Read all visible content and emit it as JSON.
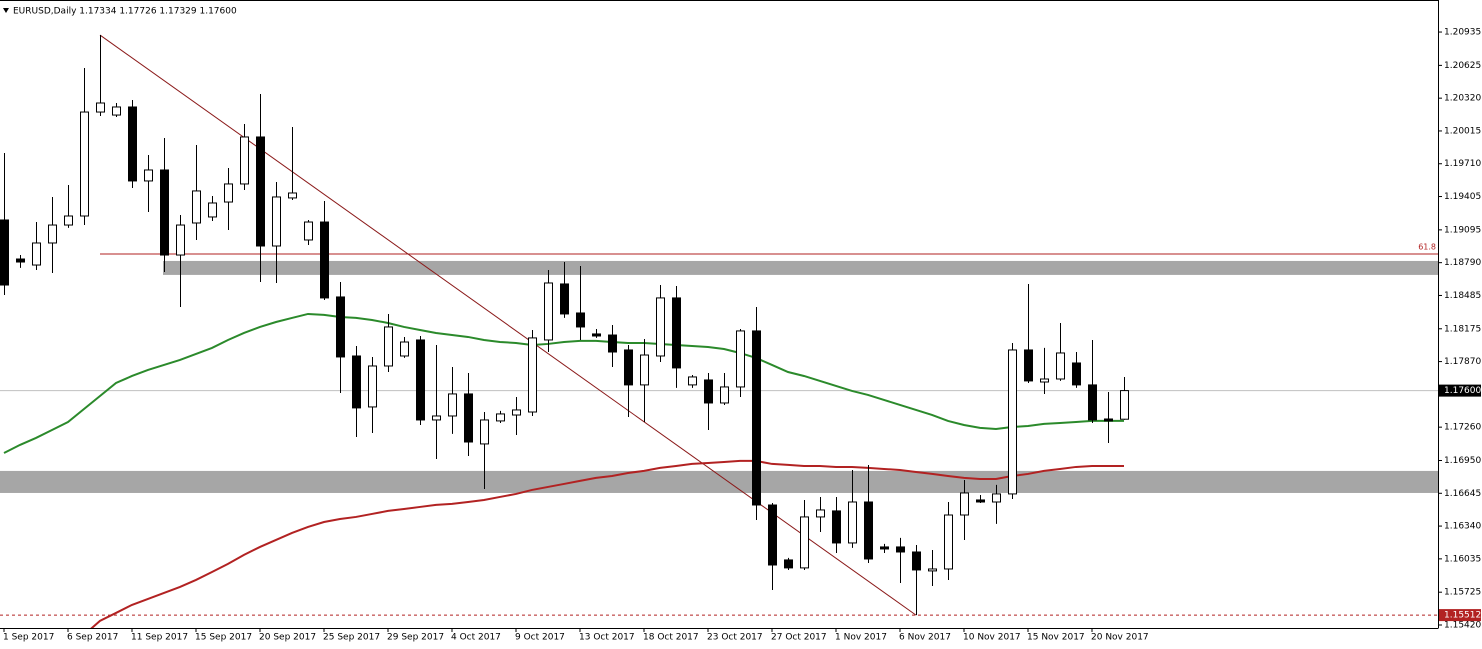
{
  "chart_data": {
    "type": "candlestick",
    "title": "EURUSD,Daily  1.17334 1.17726 1.17329 1.17600",
    "categories": [
      "1 Sep 2017",
      null,
      null,
      null,
      "6 Sep 2017",
      null,
      null,
      null,
      "11 Sep 2017",
      null,
      null,
      null,
      "15 Sep 2017",
      null,
      null,
      null,
      "20 Sep 2017",
      null,
      null,
      null,
      "25 Sep 2017",
      null,
      null,
      null,
      "29 Sep 2017",
      null,
      null,
      null,
      "4 Oct 2017",
      null,
      null,
      null,
      "9 Oct 2017",
      null,
      null,
      null,
      "13 Oct 2017",
      null,
      null,
      null,
      "18 Oct 2017",
      null,
      null,
      null,
      "23 Oct 2017",
      null,
      null,
      null,
      "27 Oct 2017",
      null,
      null,
      null,
      "1 Nov 2017",
      null,
      null,
      null,
      "6 Nov 2017",
      null,
      null,
      null,
      "10 Nov 2017",
      null,
      null,
      null,
      "15 Nov 2017",
      null,
      null,
      null,
      "20 Nov 2017",
      null,
      null
    ],
    "open": [
      1.19187,
      1.18824,
      1.18768,
      1.18973,
      1.1914,
      1.19224,
      1.20191,
      1.20163,
      1.20238,
      1.1955,
      1.19652,
      1.18861,
      1.19159,
      1.19215,
      1.19354,
      1.19522,
      1.19959,
      1.18945,
      1.19392,
      1.19001,
      1.19168,
      1.18471,
      1.17922,
      1.17448,
      1.17829,
      1.17922,
      1.18071,
      1.17327,
      1.17364,
      1.17569,
      1.17104,
      1.17318,
      1.17373,
      1.17401,
      1.18071,
      1.18592,
      1.18322,
      1.18127,
      1.18117,
      1.17978,
      1.17653,
      1.17922,
      1.18462,
      1.17653,
      1.17699,
      1.17485,
      1.17634,
      1.18155,
      1.16536,
      1.16025,
      1.15951,
      1.16425,
      1.16481,
      1.16183,
      1.16564,
      1.16146,
      1.16146,
      1.16099,
      1.15923,
      1.15941,
      1.16443,
      1.16583,
      1.16564,
      1.16639,
      1.17978,
      1.1768,
      1.17708,
      1.17857,
      1.17653,
      1.17336,
      1.17334
    ],
    "high": [
      1.1981,
      1.18861,
      1.19168,
      1.19401,
      1.19512,
      1.20601,
      1.20907,
      1.20275,
      1.20303,
      1.19791,
      1.1995,
      1.19233,
      1.19884,
      1.1941,
      1.19671,
      1.2008,
      1.20359,
      1.1954,
      1.20052,
      1.19187,
      1.19364,
      1.1861,
      1.18015,
      1.17913,
      1.18313,
      1.18099,
      1.18108,
      1.18024,
      1.1782,
      1.17764,
      1.17401,
      1.17411,
      1.17541,
      1.18164,
      1.18722,
      1.18796,
      1.18759,
      1.18173,
      1.1821,
      1.18024,
      1.1808,
      1.18582,
      1.18573,
      1.17745,
      1.17764,
      1.17764,
      1.18173,
      1.18378,
      1.16555,
      1.16044,
      1.16583,
      1.16611,
      1.16611,
      1.16862,
      1.16908,
      1.16174,
      1.1623,
      1.16164,
      1.16118,
      1.16564,
      1.16769,
      1.16629,
      1.16723,
      1.18043,
      1.18592,
      1.17997,
      1.18229,
      1.17959,
      1.18071,
      1.17587,
      1.17726
    ],
    "low": [
      1.18489,
      1.18741,
      1.18722,
      1.18694,
      1.19113,
      1.1914,
      1.20154,
      1.20145,
      1.19485,
      1.19261,
      1.18703,
      1.18378,
      1.19001,
      1.19178,
      1.19094,
      1.19466,
      1.1861,
      1.18601,
      1.19373,
      1.18954,
      1.18443,
      1.17578,
      1.17169,
      1.17206,
      1.17773,
      1.17904,
      1.1728,
      1.16964,
      1.17197,
      1.16992,
      1.16685,
      1.17299,
      1.17187,
      1.17364,
      1.17959,
      1.18276,
      1.18071,
      1.1809,
      1.1782,
      1.17355,
      1.17308,
      1.17866,
      1.17625,
      1.17625,
      1.17234,
      1.17466,
      1.17541,
      1.16397,
      1.15746,
      1.15932,
      1.15932,
      1.16285,
      1.1609,
      1.16137,
      1.15997,
      1.1609,
      1.15811,
      1.15512,
      1.15783,
      1.15839,
      1.16211,
      1.16555,
      1.1636,
      1.16592,
      1.17671,
      1.17569,
      1.1769,
      1.17625,
      1.17299,
      1.17113,
      1.17329
    ],
    "close": [
      1.18582,
      1.18796,
      1.18973,
      1.1914,
      1.19224,
      1.20191,
      1.20275,
      1.20238,
      1.1955,
      1.19652,
      1.18861,
      1.1914,
      1.19457,
      1.19345,
      1.19522,
      1.19959,
      1.18945,
      1.19401,
      1.19438,
      1.19168,
      1.18462,
      1.17913,
      1.17439,
      1.17829,
      1.18192,
      1.18052,
      1.17327,
      1.17364,
      1.17569,
      1.17122,
      1.17327,
      1.17383,
      1.1742,
      1.1809,
      1.18601,
      1.18313,
      1.18192,
      1.18108,
      1.17959,
      1.17653,
      1.17931,
      1.18462,
      1.17811,
      1.17727,
      1.17485,
      1.17634,
      1.18155,
      1.16536,
      1.15978,
      1.15951,
      1.16425,
      1.1649,
      1.16183,
      1.16564,
      1.16034,
      1.16127,
      1.16099,
      1.15932,
      1.15941,
      1.16443,
      1.16648,
      1.16564,
      1.16639,
      1.17978,
      1.1769,
      1.17708,
      1.1795,
      1.17653,
      1.17327,
      1.17318,
      1.176
    ],
    "up_color": "#ffffff",
    "down_color": "#000000",
    "overlays": [
      {
        "color": "#2b8a2b",
        "values": [
          1.1702,
          1.17095,
          1.1716,
          1.17234,
          1.17308,
          1.17429,
          1.1755,
          1.17671,
          1.17736,
          1.17792,
          1.17839,
          1.17885,
          1.17941,
          1.17997,
          1.18071,
          1.18136,
          1.18192,
          1.18238,
          1.18276,
          1.18313,
          1.18304,
          1.18285,
          1.18276,
          1.18257,
          1.18229,
          1.18192,
          1.18164,
          1.18136,
          1.18117,
          1.18099,
          1.18071,
          1.18052,
          1.18043,
          1.18024,
          1.18034,
          1.18052,
          1.18062,
          1.18062,
          1.18052,
          1.18043,
          1.18043,
          1.18034,
          1.18024,
          1.18015,
          1.18006,
          1.17987,
          1.1795,
          1.17904,
          1.17839,
          1.17773,
          1.17736,
          1.1769,
          1.17643,
          1.17597,
          1.1756,
          1.17513,
          1.17467,
          1.1742,
          1.17374,
          1.17318,
          1.1728,
          1.17253,
          1.17243,
          1.17262,
          1.17271,
          1.1729,
          1.17299,
          1.17308,
          1.17318,
          1.17318,
          1.17318
        ]
      },
      {
        "color": "#b22222",
        "values": [
          null,
          null,
          null,
          null,
          null,
          1.15328,
          1.15458,
          1.15532,
          1.15607,
          1.15662,
          1.15718,
          1.15774,
          1.15839,
          1.15913,
          1.15988,
          1.16072,
          1.16146,
          1.16211,
          1.16276,
          1.16332,
          1.16378,
          1.16406,
          1.16425,
          1.16453,
          1.16481,
          1.16499,
          1.16518,
          1.16537,
          1.16546,
          1.16564,
          1.16583,
          1.16611,
          1.16639,
          1.16676,
          1.16704,
          1.16732,
          1.1676,
          1.16788,
          1.16806,
          1.16834,
          1.16853,
          1.16881,
          1.16899,
          1.16918,
          1.16927,
          1.16936,
          1.16946,
          1.16946,
          1.16918,
          1.16909,
          1.16899,
          1.16899,
          1.1689,
          1.1689,
          1.16881,
          1.16871,
          1.16862,
          1.16843,
          1.16825,
          1.16806,
          1.16788,
          1.16778,
          1.16778,
          1.16806,
          1.16825,
          1.16853,
          1.16871,
          1.1689,
          1.16899,
          1.16899,
          1.16899
        ]
      }
    ],
    "zones": [
      {
        "from": 1.18676,
        "to": 1.18806,
        "color": "#a6a6a6"
      },
      {
        "from": 1.16648,
        "to": 1.16853,
        "color": "#a6a6a6"
      }
    ],
    "fib_level": {
      "value": 1.18871,
      "label": "61.8",
      "color": "#b22222"
    },
    "trendline_color": "#8b1a1a",
    "current_price": {
      "value": 1.176,
      "label": "1.17600",
      "color": "#c0c0c0"
    },
    "low_line": {
      "value": 1.15512,
      "label": "1.15512",
      "color": "#b22222"
    },
    "ylim": [
      1.15392,
      1.21233
    ],
    "yticks": [
      1.20935,
      1.20625,
      {
        "value": 1.2032,
        "label": "1.20320"
      },
      1.20015,
      {
        "value": 1.1971,
        "label": "1.19710"
      },
      1.19405,
      1.19095,
      {
        "value": 1.1879,
        "label": "1.18790"
      },
      1.18485,
      1.18175,
      {
        "value": 1.1787,
        "label": "1.17870"
      },
      {
        "value": 1.1726,
        "label": "1.17260"
      },
      {
        "value": 1.1695,
        "label": "1.16950"
      },
      1.16645,
      {
        "value": 1.1634,
        "label": "1.16340"
      },
      1.16035,
      1.15725,
      {
        "value": 1.1542,
        "label": "1.15420"
      }
    ]
  }
}
